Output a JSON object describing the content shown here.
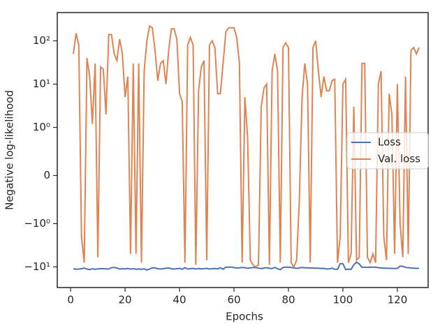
{
  "chart_data": {
    "type": "line",
    "xlabel": "Epochs",
    "ylabel": "Negative log-likelihood",
    "yscale": "symlog",
    "linthresh": 1,
    "xlim": [
      -4.9,
      131.3
    ],
    "ylim": [
      -30,
      450
    ],
    "xticks": [
      0,
      20,
      40,
      60,
      80,
      100,
      120
    ],
    "yticks": [
      {
        "value": -10,
        "label": "−10¹"
      },
      {
        "value": -1,
        "label": "−10⁰"
      },
      0,
      {
        "value": 1,
        "label": "10⁰"
      },
      {
        "value": 10,
        "label": "10¹"
      },
      {
        "value": 100,
        "label": "10²"
      }
    ],
    "legend": "center right",
    "x": [
      1,
      2,
      3,
      4,
      5,
      6,
      7,
      8,
      9,
      10,
      11,
      12,
      13,
      14,
      15,
      16,
      17,
      18,
      19,
      20,
      21,
      22,
      23,
      24,
      25,
      26,
      27,
      28,
      29,
      30,
      31,
      32,
      33,
      34,
      35,
      36,
      37,
      38,
      39,
      40,
      41,
      42,
      43,
      44,
      45,
      46,
      47,
      48,
      49,
      50,
      51,
      52,
      53,
      54,
      55,
      56,
      57,
      58,
      59,
      60,
      61,
      62,
      63,
      64,
      65,
      66,
      67,
      68,
      69,
      70,
      71,
      72,
      73,
      74,
      75,
      76,
      77,
      78,
      79,
      80,
      81,
      82,
      83,
      84,
      85,
      86,
      87,
      88,
      89,
      90,
      91,
      92,
      93,
      94,
      95,
      96,
      97,
      98,
      99,
      100,
      101,
      102,
      103,
      104,
      105,
      106,
      107,
      108,
      109,
      110,
      111,
      112,
      113,
      114,
      115,
      116,
      117,
      118,
      119,
      120,
      121,
      122,
      123,
      124,
      125,
      126,
      127,
      128
    ],
    "series": [
      {
        "name": "Loss",
        "color": "#4c72b0",
        "values": [
          -11,
          -11.3,
          -11.2,
          -11,
          -10.6,
          -11.2,
          -11.5,
          -11.1,
          -11.4,
          -11.1,
          -11,
          -11,
          -11.1,
          -11.2,
          -10.4,
          -10.3,
          -10.6,
          -11.2,
          -11,
          -11.1,
          -10.9,
          -11.2,
          -11,
          -11.3,
          -11.2,
          -11.4,
          -11.1,
          -11.8,
          -11.2,
          -10.5,
          -10.6,
          -11,
          -11.2,
          -11,
          -10.7,
          -10.6,
          -11,
          -11.2,
          -11,
          -10.8,
          -11.3,
          -10.4,
          -11.2,
          -11,
          -10.8,
          -11.2,
          -10.9,
          -11.1,
          -11,
          -10.8,
          -11.2,
          -11,
          -10.9,
          -11.1,
          -10.5,
          -11.3,
          -10.2,
          -10.1,
          -10.1,
          -10.4,
          -10.6,
          -10.5,
          -10.3,
          -10.4,
          -10.8,
          -10.5,
          -10.3,
          -10.4,
          -10.7,
          -11,
          -10.6,
          -10.4,
          -10.8,
          -10.9,
          -10.3,
          -11,
          -11.6,
          -10.3,
          -10.2,
          -10.2,
          -10.3,
          -10.6,
          -10.8,
          -10.6,
          -10.3,
          -10.5,
          -10.5,
          -10.6,
          -10.6,
          -10.7,
          -10.7,
          -10.9,
          -10.8,
          -11.2,
          -11.1,
          -10.7,
          -11.3,
          -11.4,
          -8.4,
          -8.4,
          -11.5,
          -11.3,
          -11.4,
          -8.9,
          -7.8,
          -8.6,
          -10.3,
          -10.1,
          -10.3,
          -10.1,
          -10.2,
          -10.2,
          -10.4,
          -10.6,
          -10.7,
          -10.7,
          -10.8,
          -10.8,
          -10.9,
          -10.8,
          -9.6,
          -9.7,
          -10.3,
          -10.4,
          -10.6,
          -10.7,
          -10.8,
          -10.8
        ]
      },
      {
        "name": "Val. loss",
        "color": "#dd8452",
        "values": [
          50,
          150,
          80,
          -2,
          -8,
          40,
          15,
          1.2,
          30,
          -6,
          25,
          22,
          2,
          140,
          140,
          50,
          35,
          110,
          50,
          5,
          15,
          -5,
          30,
          -5,
          30,
          -8,
          20,
          100,
          220,
          200,
          60,
          12,
          30,
          35,
          10,
          60,
          190,
          190,
          110,
          6,
          4,
          -8,
          80,
          120,
          80,
          -9,
          7,
          25,
          35,
          -7,
          80,
          100,
          70,
          6,
          6,
          30,
          160,
          200,
          200,
          200,
          120,
          30,
          -8,
          5,
          0.8,
          -7,
          -9,
          -10,
          -9,
          3,
          8,
          10,
          -9,
          20,
          50,
          20,
          -8,
          70,
          90,
          70,
          -8,
          -10,
          -7,
          -0.5,
          5,
          30,
          10,
          -8,
          70,
          100,
          20,
          5,
          15,
          7,
          7,
          12,
          13,
          -8,
          -2,
          10,
          13,
          -8,
          -5,
          3,
          -7,
          -6,
          30,
          30,
          -6,
          -8,
          -5,
          -8,
          10,
          20,
          -2,
          -7,
          6,
          2,
          -5,
          10,
          -1,
          -6,
          15,
          -5,
          60,
          70,
          50,
          70
        ]
      }
    ]
  }
}
